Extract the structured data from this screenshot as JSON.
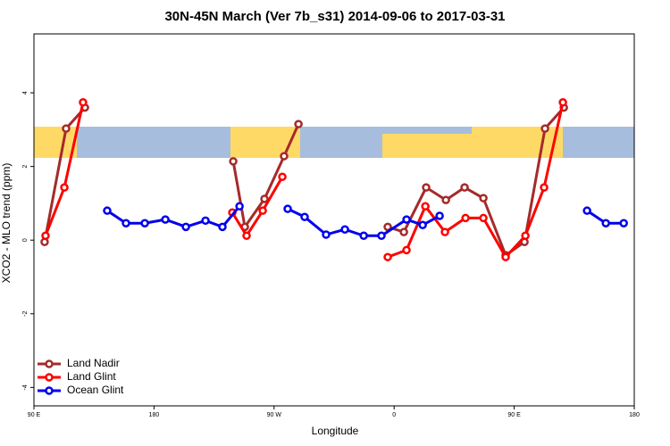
{
  "chart_data": {
    "type": "line",
    "title": "30N-45N March (Ver 7b_s31)   2014-09-06 to 2017-03-31",
    "x_label": "Longitude",
    "y_label": "XCO2 - MLO trend (ppm)",
    "xlim": [
      90,
      540
    ],
    "ylim": [
      -4.5,
      5.6
    ],
    "xticks": [
      {
        "value": 90,
        "label": "90 E"
      },
      180,
      {
        "value": 270,
        "label": "90 W"
      },
      {
        "value": 360,
        "label": "0"
      },
      {
        "value": 450,
        "label": "90 E"
      },
      {
        "value": 540,
        "label": "180"
      }
    ],
    "yticks": [
      -4,
      -2,
      0,
      2,
      4
    ],
    "legend": "bottom-left",
    "series": [
      {
        "name": "Land Nadir",
        "color": "#a52a2a",
        "x": [
          98,
          114.1,
          128.2,
          null,
          239.4,
          248.1,
          262.8,
          277.5,
          288.3,
          null,
          355.2,
          367.3,
          384,
          398.8,
          412.8,
          426.9,
          443.6,
          457.7,
          473.1,
          487.2
        ],
        "values": [
          -0.05,
          3.03,
          3.6,
          null,
          2.14,
          0.36,
          1.12,
          2.28,
          3.15,
          null,
          0.36,
          0.22,
          1.43,
          1.09,
          1.43,
          1.14,
          -0.41,
          -0.05,
          3.03,
          3.6
        ]
      },
      {
        "name": "Land Glint",
        "color": "#ff0000",
        "x": [
          98.7,
          112.8,
          126.8,
          null,
          238.7,
          249.4,
          261.5,
          276.2,
          null,
          355.2,
          369.3,
          383.4,
          398.1,
          413.5,
          426.9,
          443.6,
          458.4,
          472.4,
          486.5
        ],
        "values": [
          0.12,
          1.43,
          3.74,
          null,
          0.75,
          0.12,
          0.8,
          1.72,
          null,
          -0.46,
          -0.27,
          0.92,
          0.22,
          0.6,
          0.6,
          -0.46,
          0.12,
          1.43,
          3.74
        ]
      },
      {
        "name": "Ocean Glint",
        "color": "#0000ee",
        "x": [
          144.9,
          159,
          173.1,
          188.5,
          203.9,
          218.6,
          231.3,
          244.1,
          null,
          280.2,
          292.9,
          309,
          323.1,
          337.2,
          350.5,
          369.3,
          381.4,
          394.1,
          null,
          504.6,
          518.7,
          532.1
        ],
        "values": [
          0.8,
          0.46,
          0.46,
          0.56,
          0.36,
          0.53,
          0.36,
          0.92,
          null,
          0.85,
          0.63,
          0.15,
          0.29,
          0.12,
          0.12,
          0.56,
          0.41,
          0.66,
          null,
          0.8,
          0.46,
          0.46
        ]
      }
    ]
  }
}
